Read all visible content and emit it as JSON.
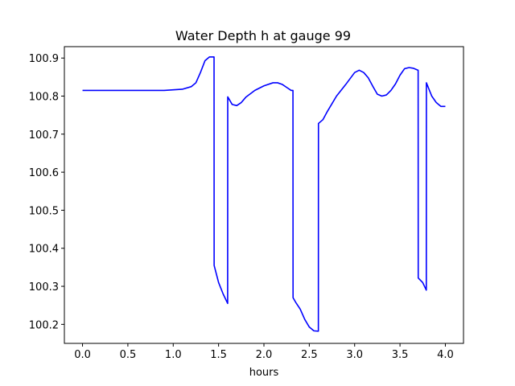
{
  "chart_data": {
    "type": "line",
    "title": "Water Depth h at gauge 99",
    "xlabel": "hours",
    "ylabel": "",
    "xlim": [
      -0.2,
      4.2
    ],
    "ylim": [
      100.15,
      100.93
    ],
    "xticks": [
      0.0,
      0.5,
      1.0,
      1.5,
      2.0,
      2.5,
      3.0,
      3.5,
      4.0
    ],
    "xtick_labels": [
      "0.0",
      "0.5",
      "1.0",
      "1.5",
      "2.0",
      "2.5",
      "3.0",
      "3.5",
      "4.0"
    ],
    "yticks": [
      100.2,
      100.3,
      100.4,
      100.5,
      100.6,
      100.7,
      100.8,
      100.9
    ],
    "ytick_labels": [
      "100.2",
      "100.3",
      "100.4",
      "100.5",
      "100.6",
      "100.7",
      "100.8",
      "100.9"
    ],
    "grid": false,
    "series": [
      {
        "color": "#0000ff",
        "x": [
          0.0,
          0.5,
          0.9,
          1.1,
          1.2,
          1.25,
          1.3,
          1.35,
          1.4,
          1.43,
          1.45,
          1.451,
          1.5,
          1.55,
          1.6,
          1.601,
          1.65,
          1.7,
          1.75,
          1.8,
          1.9,
          2.0,
          2.1,
          2.15,
          2.2,
          2.25,
          2.3,
          2.32,
          2.321,
          2.35,
          2.4,
          2.45,
          2.5,
          2.55,
          2.6,
          2.601,
          2.65,
          2.7,
          2.8,
          2.9,
          3.0,
          3.05,
          3.1,
          3.15,
          3.2,
          3.25,
          3.3,
          3.35,
          3.4,
          3.45,
          3.5,
          3.55,
          3.6,
          3.65,
          3.7,
          3.701,
          3.75,
          3.79,
          3.791,
          3.85,
          3.9,
          3.95,
          4.0
        ],
        "y": [
          100.815,
          100.815,
          100.815,
          100.818,
          100.825,
          100.835,
          100.862,
          100.893,
          100.903,
          100.903,
          100.903,
          100.355,
          100.31,
          100.28,
          100.255,
          100.798,
          100.778,
          100.775,
          100.783,
          100.797,
          100.815,
          100.827,
          100.835,
          100.835,
          100.831,
          100.823,
          100.815,
          100.815,
          100.27,
          100.258,
          100.24,
          100.213,
          100.193,
          100.183,
          100.182,
          100.728,
          100.738,
          100.76,
          100.8,
          100.83,
          100.862,
          100.868,
          100.862,
          100.848,
          100.826,
          100.805,
          100.8,
          100.803,
          100.815,
          100.832,
          100.855,
          100.872,
          100.875,
          100.873,
          100.868,
          100.322,
          100.31,
          100.29,
          100.835,
          100.8,
          100.783,
          100.773,
          100.773
        ]
      }
    ]
  }
}
